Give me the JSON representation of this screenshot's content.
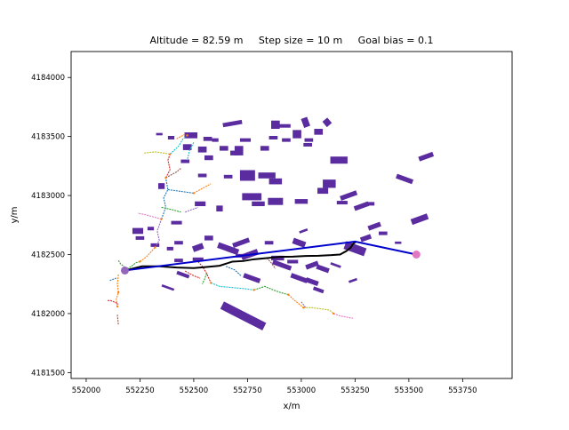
{
  "chart_data": {
    "type": "scatter",
    "title": "Altitude = 82.59 m     Step size = 10 m     Goal bias = 0.1",
    "xlabel": "x/m",
    "ylabel": "y/m",
    "xlim": [
      551930,
      553980
    ],
    "ylim": [
      4181450,
      4184220
    ],
    "x_ticks": [
      552000,
      552250,
      552500,
      552750,
      553000,
      553250,
      553500,
      553750
    ],
    "y_ticks": [
      4181500,
      4182000,
      4182500,
      4183000,
      4183500,
      4184000
    ],
    "grid": false,
    "start_point": {
      "x": 552180,
      "y": 4182365,
      "color": "#9467bd"
    },
    "goal_point": {
      "x": 553535,
      "y": 4182500,
      "color": "#e377c2"
    },
    "planned_path": {
      "color": "#0000cc",
      "x": [
        552180,
        553250,
        553535
      ],
      "y": [
        4182365,
        4182610,
        4182500
      ]
    },
    "executed_path": {
      "color": "#000000",
      "x": [
        552180,
        552260,
        552340,
        552420,
        552500,
        552560,
        552620,
        552680,
        552730,
        552780,
        552840,
        552900,
        552960,
        553020,
        553080,
        553140,
        553180,
        553210,
        553230,
        553240,
        553255
      ],
      "y": [
        4182365,
        4182400,
        4182400,
        4182390,
        4182385,
        4182395,
        4182405,
        4182440,
        4182445,
        4182460,
        4182470,
        4182480,
        4182482,
        4182488,
        4182490,
        4182495,
        4182500,
        4182530,
        4182560,
        4182590,
        4182610
      ]
    },
    "obstacles": [
      {
        "cx": 552487,
        "cy": 4183510,
        "w": 60,
        "h": 50,
        "angle": 0
      },
      {
        "cx": 552565,
        "cy": 4183480,
        "w": 40,
        "h": 35,
        "angle": 0
      },
      {
        "cx": 552680,
        "cy": 4183610,
        "w": 90,
        "h": 35,
        "angle": 10
      },
      {
        "cx": 552740,
        "cy": 4183470,
        "w": 50,
        "h": 30,
        "angle": 0
      },
      {
        "cx": 552880,
        "cy": 4183600,
        "w": 40,
        "h": 70,
        "angle": 0
      },
      {
        "cx": 552920,
        "cy": 4183590,
        "w": 60,
        "h": 30,
        "angle": 0
      },
      {
        "cx": 553020,
        "cy": 4183620,
        "w": 30,
        "h": 80,
        "angle": 20
      },
      {
        "cx": 553120,
        "cy": 4183620,
        "w": 30,
        "h": 60,
        "angle": 40
      },
      {
        "cx": 552470,
        "cy": 4183410,
        "w": 40,
        "h": 50,
        "angle": 0
      },
      {
        "cx": 552540,
        "cy": 4183390,
        "w": 40,
        "h": 50,
        "angle": 0
      },
      {
        "cx": 552640,
        "cy": 4183400,
        "w": 40,
        "h": 40,
        "angle": 0
      },
      {
        "cx": 552710,
        "cy": 4183380,
        "w": 40,
        "h": 80,
        "angle": 0
      },
      {
        "cx": 552830,
        "cy": 4183400,
        "w": 40,
        "h": 40,
        "angle": 0
      },
      {
        "cx": 552930,
        "cy": 4183470,
        "w": 40,
        "h": 30,
        "angle": 0
      },
      {
        "cx": 552980,
        "cy": 4183520,
        "w": 40,
        "h": 70,
        "angle": 0
      },
      {
        "cx": 553035,
        "cy": 4183470,
        "w": 40,
        "h": 30,
        "angle": 0
      },
      {
        "cx": 553080,
        "cy": 4183540,
        "w": 40,
        "h": 50,
        "angle": 0
      },
      {
        "cx": 553175,
        "cy": 4183300,
        "w": 80,
        "h": 60,
        "angle": 0
      },
      {
        "cx": 553580,
        "cy": 4183330,
        "w": 70,
        "h": 40,
        "angle": 20
      },
      {
        "cx": 552340,
        "cy": 4183520,
        "w": 30,
        "h": 20,
        "angle": 0
      },
      {
        "cx": 552395,
        "cy": 4183490,
        "w": 30,
        "h": 30,
        "angle": 0
      },
      {
        "cx": 552600,
        "cy": 4183470,
        "w": 30,
        "h": 30,
        "angle": 0
      },
      {
        "cx": 552870,
        "cy": 4183490,
        "w": 40,
        "h": 30,
        "angle": 0
      },
      {
        "cx": 553030,
        "cy": 4183430,
        "w": 40,
        "h": 30,
        "angle": 0
      },
      {
        "cx": 552460,
        "cy": 4183290,
        "w": 40,
        "h": 30,
        "angle": 0
      },
      {
        "cx": 552570,
        "cy": 4183320,
        "w": 40,
        "h": 40,
        "angle": 0
      },
      {
        "cx": 552690,
        "cy": 4183360,
        "w": 40,
        "h": 40,
        "angle": 0
      },
      {
        "cx": 552750,
        "cy": 4183170,
        "w": 70,
        "h": 90,
        "angle": 0
      },
      {
        "cx": 552840,
        "cy": 4183170,
        "w": 80,
        "h": 50,
        "angle": 0
      },
      {
        "cx": 552880,
        "cy": 4183120,
        "w": 60,
        "h": 50,
        "angle": 0
      },
      {
        "cx": 553130,
        "cy": 4183100,
        "w": 60,
        "h": 70,
        "angle": 0
      },
      {
        "cx": 553100,
        "cy": 4183040,
        "w": 50,
        "h": 50,
        "angle": 0
      },
      {
        "cx": 553220,
        "cy": 4183000,
        "w": 80,
        "h": 40,
        "angle": 20
      },
      {
        "cx": 553480,
        "cy": 4183140,
        "w": 80,
        "h": 40,
        "angle": -20
      },
      {
        "cx": 552350,
        "cy": 4183080,
        "w": 30,
        "h": 50,
        "angle": 0
      },
      {
        "cx": 552540,
        "cy": 4183170,
        "w": 40,
        "h": 30,
        "angle": 0
      },
      {
        "cx": 552660,
        "cy": 4183160,
        "w": 40,
        "h": 30,
        "angle": 0
      },
      {
        "cx": 552770,
        "cy": 4182990,
        "w": 90,
        "h": 60,
        "angle": 0
      },
      {
        "cx": 552880,
        "cy": 4182950,
        "w": 70,
        "h": 60,
        "angle": 0
      },
      {
        "cx": 552800,
        "cy": 4182930,
        "w": 60,
        "h": 40,
        "angle": 0
      },
      {
        "cx": 553000,
        "cy": 4182950,
        "w": 60,
        "h": 40,
        "angle": 0
      },
      {
        "cx": 553190,
        "cy": 4182940,
        "w": 50,
        "h": 30,
        "angle": 0
      },
      {
        "cx": 553280,
        "cy": 4182910,
        "w": 70,
        "h": 40,
        "angle": 20
      },
      {
        "cx": 553320,
        "cy": 4182930,
        "w": 40,
        "h": 30,
        "angle": 0
      },
      {
        "cx": 553550,
        "cy": 4182800,
        "w": 80,
        "h": 50,
        "angle": 20
      },
      {
        "cx": 552420,
        "cy": 4182770,
        "w": 50,
        "h": 30,
        "angle": 0
      },
      {
        "cx": 552530,
        "cy": 4182930,
        "w": 50,
        "h": 40,
        "angle": 0
      },
      {
        "cx": 552620,
        "cy": 4182890,
        "w": 30,
        "h": 50,
        "angle": 0
      },
      {
        "cx": 552240,
        "cy": 4182700,
        "w": 50,
        "h": 50,
        "angle": 0
      },
      {
        "cx": 552300,
        "cy": 4182720,
        "w": 30,
        "h": 30,
        "angle": 0
      },
      {
        "cx": 552430,
        "cy": 4182600,
        "w": 40,
        "h": 30,
        "angle": 0
      },
      {
        "cx": 552390,
        "cy": 4182550,
        "w": 30,
        "h": 30,
        "angle": 0
      },
      {
        "cx": 552570,
        "cy": 4182640,
        "w": 40,
        "h": 40,
        "angle": 0
      },
      {
        "cx": 552660,
        "cy": 4182550,
        "w": 100,
        "h": 50,
        "angle": -20
      },
      {
        "cx": 552720,
        "cy": 4182600,
        "w": 80,
        "h": 40,
        "angle": 20
      },
      {
        "cx": 552760,
        "cy": 4182500,
        "w": 80,
        "h": 50,
        "angle": 20
      },
      {
        "cx": 552850,
        "cy": 4182600,
        "w": 40,
        "h": 30,
        "angle": 0
      },
      {
        "cx": 552990,
        "cy": 4182600,
        "w": 60,
        "h": 50,
        "angle": -20
      },
      {
        "cx": 553010,
        "cy": 4182700,
        "w": 40,
        "h": 20,
        "angle": 20
      },
      {
        "cx": 553250,
        "cy": 4182550,
        "w": 100,
        "h": 70,
        "angle": -20
      },
      {
        "cx": 553300,
        "cy": 4182640,
        "w": 50,
        "h": 40,
        "angle": 20
      },
      {
        "cx": 553340,
        "cy": 4182740,
        "w": 60,
        "h": 40,
        "angle": 20
      },
      {
        "cx": 553380,
        "cy": 4182680,
        "w": 40,
        "h": 30,
        "angle": 0
      },
      {
        "cx": 553450,
        "cy": 4182600,
        "w": 30,
        "h": 20,
        "angle": 0
      },
      {
        "cx": 552520,
        "cy": 4182560,
        "w": 50,
        "h": 50,
        "angle": 20
      },
      {
        "cx": 552520,
        "cy": 4182460,
        "w": 50,
        "h": 30,
        "angle": 0
      },
      {
        "cx": 552430,
        "cy": 4182450,
        "w": 40,
        "h": 30,
        "angle": 0
      },
      {
        "cx": 552250,
        "cy": 4182640,
        "w": 40,
        "h": 30,
        "angle": 0
      },
      {
        "cx": 552320,
        "cy": 4182580,
        "w": 40,
        "h": 30,
        "angle": 0
      },
      {
        "cx": 552720,
        "cy": 4182490,
        "w": 50,
        "h": 30,
        "angle": 0
      },
      {
        "cx": 552890,
        "cy": 4182470,
        "w": 60,
        "h": 40,
        "angle": 0
      },
      {
        "cx": 552910,
        "cy": 4182410,
        "w": 90,
        "h": 40,
        "angle": -20
      },
      {
        "cx": 552960,
        "cy": 4182440,
        "w": 50,
        "h": 30,
        "angle": 0
      },
      {
        "cx": 553050,
        "cy": 4182410,
        "w": 60,
        "h": 40,
        "angle": 20
      },
      {
        "cx": 553100,
        "cy": 4182380,
        "w": 60,
        "h": 40,
        "angle": -20
      },
      {
        "cx": 553160,
        "cy": 4182410,
        "w": 50,
        "h": 20,
        "angle": -20
      },
      {
        "cx": 552450,
        "cy": 4182330,
        "w": 60,
        "h": 30,
        "angle": -20
      },
      {
        "cx": 552770,
        "cy": 4182300,
        "w": 80,
        "h": 40,
        "angle": -20
      },
      {
        "cx": 552990,
        "cy": 4182300,
        "w": 80,
        "h": 40,
        "angle": -20
      },
      {
        "cx": 553050,
        "cy": 4182270,
        "w": 60,
        "h": 40,
        "angle": -20
      },
      {
        "cx": 553080,
        "cy": 4182200,
        "w": 50,
        "h": 30,
        "angle": -20
      },
      {
        "cx": 552380,
        "cy": 4182220,
        "w": 60,
        "h": 20,
        "angle": -20
      },
      {
        "cx": 553240,
        "cy": 4182280,
        "w": 40,
        "h": 20,
        "angle": 20
      },
      {
        "cx": 552730,
        "cy": 4181980,
        "w": 220,
        "h": 70,
        "angle": -27
      }
    ],
    "tree_branches": [
      {
        "color": "#2ca02c",
        "x": [
          552150,
          552160,
          552175,
          552180
        ],
        "y": [
          4182450,
          4182420,
          4182400,
          4182365
        ]
      },
      {
        "color": "#ff7f0e",
        "x": [
          552150,
          552145,
          552150,
          552140,
          552145
        ],
        "y": [
          4182330,
          4182250,
          4182180,
          4182120,
          4182060
        ]
      },
      {
        "color": "#1f77b4",
        "x": [
          552110,
          552125,
          552140
        ],
        "y": [
          4182280,
          4182290,
          4182300
        ]
      },
      {
        "color": "#d62728",
        "x": [
          552100,
          552115,
          552140,
          552150
        ],
        "y": [
          4182110,
          4182110,
          4182090,
          4182080
        ]
      },
      {
        "color": "#8c564b",
        "x": [
          552145,
          552150
        ],
        "y": [
          4181990,
          4181900
        ]
      },
      {
        "color": "#2ca02c",
        "x": [
          552180,
          552210,
          552230,
          552250
        ],
        "y": [
          4182365,
          4182400,
          4182430,
          4182440
        ]
      },
      {
        "color": "#ff7f0e",
        "x": [
          552250,
          552280,
          552300,
          552320
        ],
        "y": [
          4182440,
          4182480,
          4182520,
          4182560
        ]
      },
      {
        "color": "#9467bd",
        "x": [
          552320,
          552340,
          552330,
          552350
        ],
        "y": [
          4182560,
          4182620,
          4182700,
          4182800
        ]
      },
      {
        "color": "#1f77b4",
        "x": [
          552350,
          552370,
          552360,
          552380,
          552370
        ],
        "y": [
          4182800,
          4182900,
          4182980,
          4183050,
          4183150
        ]
      },
      {
        "color": "#d62728",
        "x": [
          552370,
          552390,
          552380,
          552390
        ],
        "y": [
          4183150,
          4183220,
          4183300,
          4183350
        ]
      },
      {
        "color": "#17becf",
        "x": [
          552390,
          552430,
          552450,
          552470
        ],
        "y": [
          4183350,
          4183420,
          4183480,
          4183510
        ]
      },
      {
        "color": "#bcbd22",
        "x": [
          552270,
          552320,
          552360,
          552390
        ],
        "y": [
          4183360,
          4183370,
          4183360,
          4183350
        ]
      },
      {
        "color": "#8c564b",
        "x": [
          552370,
          552400,
          552420,
          552440
        ],
        "y": [
          4183150,
          4183180,
          4183200,
          4183230
        ]
      },
      {
        "color": "#e377c2",
        "x": [
          552350,
          552310,
          552270,
          552240
        ],
        "y": [
          4182800,
          4182820,
          4182840,
          4182850
        ]
      },
      {
        "color": "#2ca02c",
        "x": [
          552350,
          552400,
          552440
        ],
        "y": [
          4182900,
          4182880,
          4182860
        ]
      },
      {
        "color": "#1f77b4",
        "x": [
          552380,
          552420,
          552460,
          552500
        ],
        "y": [
          4183050,
          4183040,
          4183030,
          4183020
        ]
      },
      {
        "color": "#ff7f0e",
        "x": [
          552500,
          552540,
          552580
        ],
        "y": [
          4183020,
          4183060,
          4183100
        ]
      },
      {
        "color": "#9467bd",
        "x": [
          552460,
          552490,
          552520
        ],
        "y": [
          4182860,
          4182880,
          4182900
        ]
      },
      {
        "color": "#d62728",
        "x": [
          552520,
          552540,
          552560,
          552580
        ],
        "y": [
          4182440,
          4182400,
          4182340,
          4182260
        ]
      },
      {
        "color": "#17becf",
        "x": [
          552580,
          552620,
          552680,
          552740,
          552780
        ],
        "y": [
          4182260,
          4182230,
          4182220,
          4182210,
          4182200
        ]
      },
      {
        "color": "#2ca02c",
        "x": [
          552780,
          552830,
          552870,
          552900,
          552940
        ],
        "y": [
          4182200,
          4182230,
          4182200,
          4182180,
          4182160
        ]
      },
      {
        "color": "#ff7f0e",
        "x": [
          552940,
          552970,
          552990,
          553010
        ],
        "y": [
          4182160,
          4182110,
          4182080,
          4182050
        ]
      },
      {
        "color": "#bcbd22",
        "x": [
          553010,
          553050,
          553090,
          553130,
          553150
        ],
        "y": [
          4182050,
          4182050,
          4182040,
          4182030,
          4182000
        ]
      },
      {
        "color": "#e377c2",
        "x": [
          553150,
          553180,
          553210,
          553240
        ],
        "y": [
          4182000,
          4181980,
          4181970,
          4181960
        ]
      },
      {
        "color": "#1f77b4",
        "x": [
          552650,
          552690,
          552720
        ],
        "y": [
          4182400,
          4182370,
          4182320
        ]
      },
      {
        "color": "#8c564b",
        "x": [
          552840,
          552860,
          552880
        ],
        "y": [
          4182470,
          4182430,
          4182380
        ]
      },
      {
        "color": "#9467bd",
        "x": [
          553000,
          553020
        ],
        "y": [
          4182100,
          4182050
        ]
      },
      {
        "color": "#2ca02c",
        "x": [
          552560,
          552550,
          552540
        ],
        "y": [
          4182340,
          4182290,
          4182250
        ]
      },
      {
        "color": "#d62728",
        "x": [
          552460,
          552500,
          552530
        ],
        "y": [
          4182360,
          4182320,
          4182300
        ]
      },
      {
        "color": "#17becf",
        "x": [
          552500,
          552480,
          552470
        ],
        "y": [
          4183450,
          4183380,
          4183300
        ]
      },
      {
        "color": "#ff7f0e",
        "x": [
          552420,
          552440,
          552460
        ],
        "y": [
          4183480,
          4183500,
          4183520
        ]
      }
    ],
    "tree_nodes": [
      {
        "x": 552180,
        "y": 4182365
      },
      {
        "x": 552250,
        "y": 4182440
      },
      {
        "x": 552320,
        "y": 4182560
      },
      {
        "x": 552350,
        "y": 4182800
      },
      {
        "x": 552370,
        "y": 4183150
      },
      {
        "x": 552390,
        "y": 4183350
      },
      {
        "x": 552470,
        "y": 4183510
      },
      {
        "x": 552580,
        "y": 4182260
      },
      {
        "x": 552780,
        "y": 4182200
      },
      {
        "x": 552940,
        "y": 4182160
      },
      {
        "x": 553010,
        "y": 4182050
      },
      {
        "x": 553150,
        "y": 4182000
      },
      {
        "x": 552145,
        "y": 4182060
      },
      {
        "x": 552150,
        "y": 4182180
      },
      {
        "x": 552500,
        "y": 4183020
      }
    ]
  }
}
